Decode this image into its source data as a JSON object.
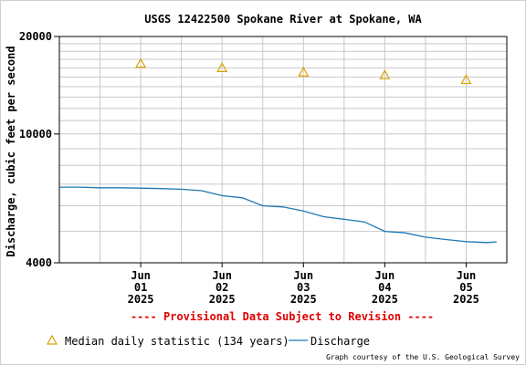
{
  "chart_data": {
    "type": "line",
    "title": "USGS 12422500 Spokane River at Spokane, WA",
    "ylabel": "Discharge, cubic feet per second",
    "xlabel": "",
    "y_scale": "log",
    "ylim": [
      4000,
      20000
    ],
    "y_ticks": [
      "20000",
      "10000",
      "4000"
    ],
    "x_ticks": [
      {
        "month": "Jun",
        "day": "01",
        "year": "2025"
      },
      {
        "month": "Jun",
        "day": "02",
        "year": "2025"
      },
      {
        "month": "Jun",
        "day": "03",
        "year": "2025"
      },
      {
        "month": "Jun",
        "day": "04",
        "year": "2025"
      },
      {
        "month": "Jun",
        "day": "05",
        "year": "2025"
      }
    ],
    "xlim": [
      "2025-05-31",
      "2025-06-05T12:00"
    ],
    "grid": true,
    "series": [
      {
        "name": "Median daily statistic (134 years)",
        "style": "triangle-marker",
        "color": "#d9a200",
        "points": [
          {
            "x": "2025-06-01",
            "y": 16500
          },
          {
            "x": "2025-06-02",
            "y": 16000
          },
          {
            "x": "2025-06-03",
            "y": 15500
          },
          {
            "x": "2025-06-04",
            "y": 15200
          },
          {
            "x": "2025-06-05",
            "y": 14700
          }
        ]
      },
      {
        "name": "Discharge",
        "style": "line",
        "color": "#1f77b4",
        "points": [
          {
            "x": "2025-05-31T00:00",
            "y": 6850
          },
          {
            "x": "2025-05-31T06:00",
            "y": 6850
          },
          {
            "x": "2025-05-31T12:00",
            "y": 6820
          },
          {
            "x": "2025-05-31T18:00",
            "y": 6820
          },
          {
            "x": "2025-06-01T00:00",
            "y": 6800
          },
          {
            "x": "2025-06-01T06:00",
            "y": 6780
          },
          {
            "x": "2025-06-01T12:00",
            "y": 6750
          },
          {
            "x": "2025-06-01T18:00",
            "y": 6680
          },
          {
            "x": "2025-06-02T00:00",
            "y": 6450
          },
          {
            "x": "2025-06-02T06:00",
            "y": 6350
          },
          {
            "x": "2025-06-02T12:00",
            "y": 6000
          },
          {
            "x": "2025-06-02T18:00",
            "y": 5950
          },
          {
            "x": "2025-06-03T00:00",
            "y": 5780
          },
          {
            "x": "2025-06-03T06:00",
            "y": 5550
          },
          {
            "x": "2025-06-03T12:00",
            "y": 5450
          },
          {
            "x": "2025-06-03T18:00",
            "y": 5350
          },
          {
            "x": "2025-06-04T00:00",
            "y": 5000
          },
          {
            "x": "2025-06-04T06:00",
            "y": 4950
          },
          {
            "x": "2025-06-04T12:00",
            "y": 4800
          },
          {
            "x": "2025-06-04T18:00",
            "y": 4720
          },
          {
            "x": "2025-06-05T00:00",
            "y": 4650
          },
          {
            "x": "2025-06-05T06:00",
            "y": 4620
          },
          {
            "x": "2025-06-05T09:00",
            "y": 4640
          }
        ]
      }
    ],
    "provisional_note": "---- Provisional Data Subject to Revision ----",
    "legend": [
      {
        "label": "Median daily statistic (134 years)",
        "marker": "triangle",
        "color": "#d9a200"
      },
      {
        "label": "Discharge",
        "marker": "line",
        "color": "#1f77b4"
      }
    ],
    "legend_position": "bottom",
    "credit": "Graph courtesy of the U.S. Geological Survey",
    "colors": {
      "provisional_text": "#e00000",
      "grid": "#c8c8c8",
      "axis": "#000000"
    }
  }
}
